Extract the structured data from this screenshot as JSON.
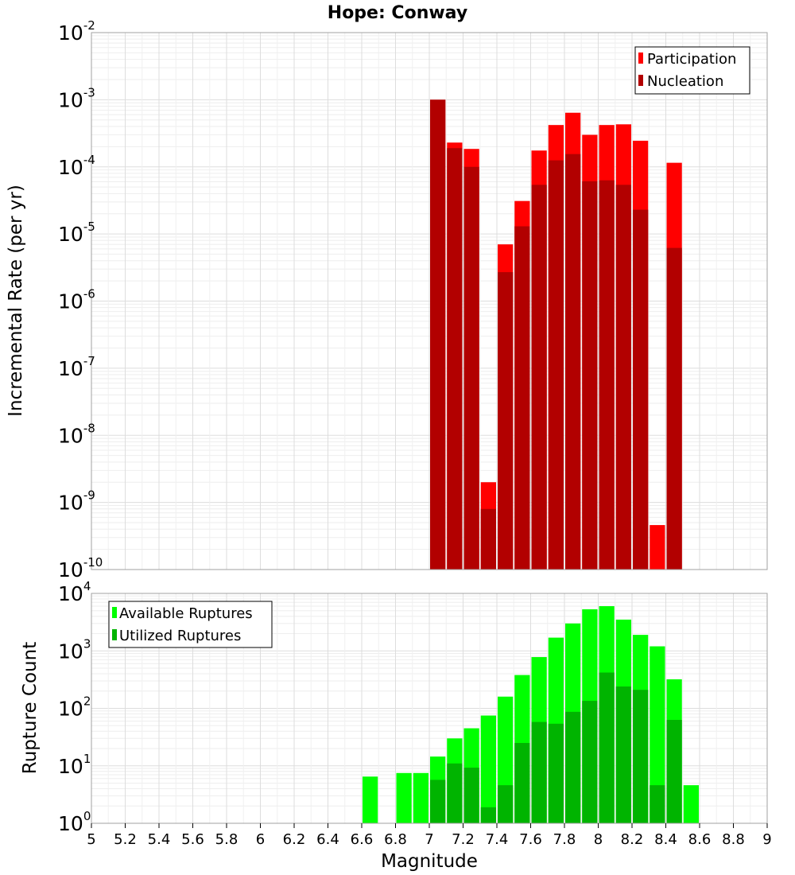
{
  "chart_data": [
    {
      "type": "bar",
      "title": "Hope: Conway",
      "xlabel": "",
      "ylabel": "Incremental Rate (per yr)",
      "yscale": "log",
      "ylim_exponents": [
        -10,
        -2
      ],
      "xlim": [
        5,
        9
      ],
      "grid": true,
      "legend_position": "top-right",
      "series": [
        {
          "name": "Participation",
          "color": "#ff0000",
          "x": [
            7.05,
            7.15,
            7.25,
            7.35,
            7.45,
            7.55,
            7.65,
            7.75,
            7.85,
            7.95,
            8.05,
            8.15,
            8.25,
            8.35,
            8.45
          ],
          "values": [
            0.001,
            0.00023,
            0.000185,
            2e-09,
            7e-06,
            3.1e-05,
            0.000175,
            0.00042,
            0.00064,
            0.0003,
            0.00042,
            0.00043,
            0.000245,
            4.6e-10,
            0.000115
          ]
        },
        {
          "name": "Nucleation",
          "color": "#b20000",
          "x": [
            7.05,
            7.15,
            7.25,
            7.35,
            7.45,
            7.55,
            7.65,
            7.75,
            7.85,
            7.95,
            8.05,
            8.15,
            8.25,
            8.35,
            8.45
          ],
          "values": [
            0.001,
            0.00019,
            0.0001,
            8e-10,
            2.7e-06,
            1.3e-05,
            5.4e-05,
            0.000125,
            0.000155,
            6.1e-05,
            6.3e-05,
            5.4e-05,
            2.3e-05,
            0,
            6.2e-06
          ]
        }
      ]
    },
    {
      "type": "bar",
      "title": "",
      "xlabel": "Magnitude",
      "ylabel": "Rupture Count",
      "yscale": "log",
      "ylim_exponents": [
        0,
        4
      ],
      "xlim": [
        5,
        9
      ],
      "grid": true,
      "legend_position": "top-left",
      "xticks": [
        "5",
        "5.2",
        "5.4",
        "5.6",
        "5.8",
        "6",
        "6.2",
        "6.4",
        "6.6",
        "6.8",
        "7",
        "7.2",
        "7.4",
        "7.6",
        "7.8",
        "8",
        "8.2",
        "8.4",
        "8.6",
        "8.8",
        "9"
      ],
      "series": [
        {
          "name": "Available Ruptures",
          "color": "#00ff00",
          "x": [
            6.65,
            6.85,
            6.95,
            7.05,
            7.15,
            7.25,
            7.35,
            7.45,
            7.55,
            7.65,
            7.75,
            7.85,
            7.95,
            8.05,
            8.15,
            8.25,
            8.35,
            8.45,
            8.55
          ],
          "values": [
            6.5,
            7.5,
            7.5,
            14.5,
            30,
            45,
            75,
            160,
            380,
            780,
            1700,
            3000,
            5300,
            6000,
            3500,
            1900,
            1200,
            320,
            4.6
          ]
        },
        {
          "name": "Utilized Ruptures",
          "color": "#00b400",
          "x": [
            6.65,
            6.85,
            6.95,
            7.05,
            7.15,
            7.25,
            7.35,
            7.45,
            7.55,
            7.65,
            7.75,
            7.85,
            7.95,
            8.05,
            8.15,
            8.25,
            8.35,
            8.45,
            8.55
          ],
          "values": [
            0,
            0,
            0,
            5.7,
            11,
            9.3,
            1.9,
            4.6,
            25,
            58,
            54,
            87,
            135,
            420,
            240,
            210,
            4.6,
            63,
            0
          ]
        }
      ]
    }
  ]
}
